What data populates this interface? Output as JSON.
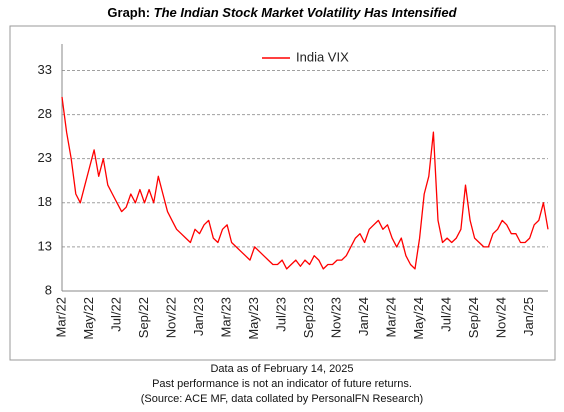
{
  "chart_data": {
    "type": "line",
    "title_prefix": "Graph:",
    "title": "The Indian Stock Market Volatility Has Intensified",
    "notes": [
      "Data as of February 14, 2025",
      "Past performance is not an indicator of future returns.",
      "(Source: ACE MF, data collated by PersonalFN Research)"
    ],
    "legend": "top",
    "grid": true,
    "ylim": [
      8,
      36
    ],
    "yticks": [
      8,
      13,
      18,
      23,
      28,
      33
    ],
    "categories": [
      "Mar/22",
      null,
      null,
      null,
      null,
      null,
      "May/22",
      null,
      null,
      null,
      null,
      null,
      "Jul/22",
      null,
      null,
      null,
      null,
      null,
      "Sep/22",
      null,
      null,
      null,
      null,
      null,
      "Nov/22",
      null,
      null,
      null,
      null,
      null,
      "Jan/23",
      null,
      null,
      null,
      null,
      null,
      "Mar/23",
      null,
      null,
      null,
      null,
      null,
      "May/23",
      null,
      null,
      null,
      null,
      null,
      "Jul/23",
      null,
      null,
      null,
      null,
      null,
      "Sep/23",
      null,
      null,
      null,
      null,
      null,
      "Nov/23",
      null,
      null,
      null,
      null,
      null,
      "Jan/24",
      null,
      null,
      null,
      null,
      null,
      "Mar/24",
      null,
      null,
      null,
      null,
      null,
      "May/24",
      null,
      null,
      null,
      null,
      null,
      "Jul/24",
      null,
      null,
      null,
      null,
      null,
      "Sep/24",
      null,
      null,
      null,
      null,
      null,
      "Nov/24",
      null,
      null,
      null,
      null,
      null,
      "Jan/25",
      null,
      null,
      null,
      null
    ],
    "series": [
      {
        "name": "India VIX",
        "color": "#ff0000",
        "values": [
          30,
          26,
          23,
          19,
          18,
          20,
          22,
          24,
          21,
          23,
          20,
          19,
          18,
          17,
          17.5,
          19,
          18,
          19.5,
          18,
          19.5,
          18,
          21,
          19,
          17,
          16,
          15,
          14.5,
          14,
          13.5,
          15,
          14.5,
          15.5,
          16,
          14,
          13.5,
          15,
          15.5,
          13.5,
          13,
          12.5,
          12,
          11.5,
          13,
          12.5,
          12,
          11.5,
          11,
          11,
          11.5,
          10.5,
          11,
          11.5,
          10.8,
          11.5,
          11,
          12,
          11.5,
          10.5,
          11,
          11,
          11.5,
          11.5,
          12,
          13,
          14,
          14.5,
          13.5,
          15,
          15.5,
          16,
          15,
          15.5,
          14,
          13,
          14,
          12,
          11,
          10.5,
          14,
          19,
          21,
          26,
          16,
          13.5,
          14,
          13.5,
          14,
          15,
          20,
          16,
          14,
          13.5,
          13,
          13,
          14.5,
          15,
          16,
          15.5,
          14.5,
          14.5,
          13.5,
          13.5,
          14,
          15.5,
          16,
          18,
          15
        ]
      }
    ]
  }
}
